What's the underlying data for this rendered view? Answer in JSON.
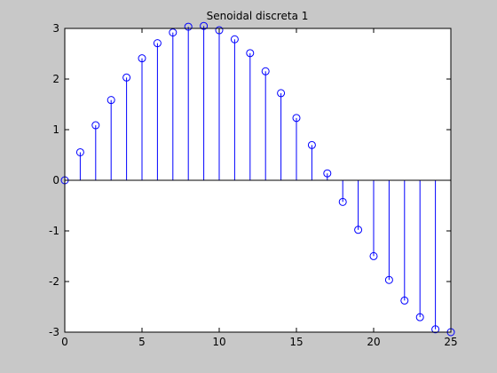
{
  "window": {
    "background_color": "#c8c8c8"
  },
  "chart_data": {
    "type": "stem",
    "title": "Senoidal discreta 1",
    "xlabel": "",
    "ylabel": "",
    "xlim": [
      0,
      25
    ],
    "ylim": [
      -3,
      3
    ],
    "x_ticks": [
      0,
      5,
      10,
      15,
      20,
      25
    ],
    "y_ticks": [
      -3,
      -2,
      -1,
      0,
      1,
      2,
      3
    ],
    "x": [
      0,
      1,
      2,
      3,
      4,
      5,
      6,
      7,
      8,
      9,
      10,
      11,
      12,
      13,
      14,
      15,
      16,
      17,
      18,
      19,
      20,
      21,
      22,
      23,
      24,
      25
    ],
    "y": [
      0,
      0.553,
      1.087,
      1.585,
      2.03,
      2.409,
      2.708,
      2.919,
      3.033,
      3.049,
      2.964,
      2.785,
      2.512,
      2.153,
      1.721,
      1.231,
      0.696,
      0.137,
      -0.427,
      -0.979,
      -1.498,
      -1.969,
      -2.376,
      -2.705,
      -2.944,
      -3.0
    ],
    "marker": "circle",
    "grid": false,
    "colors": {
      "stem": "#0000ff",
      "axes_background": "#ffffff",
      "axes_border": "#000000",
      "baseline": "#000000"
    }
  }
}
